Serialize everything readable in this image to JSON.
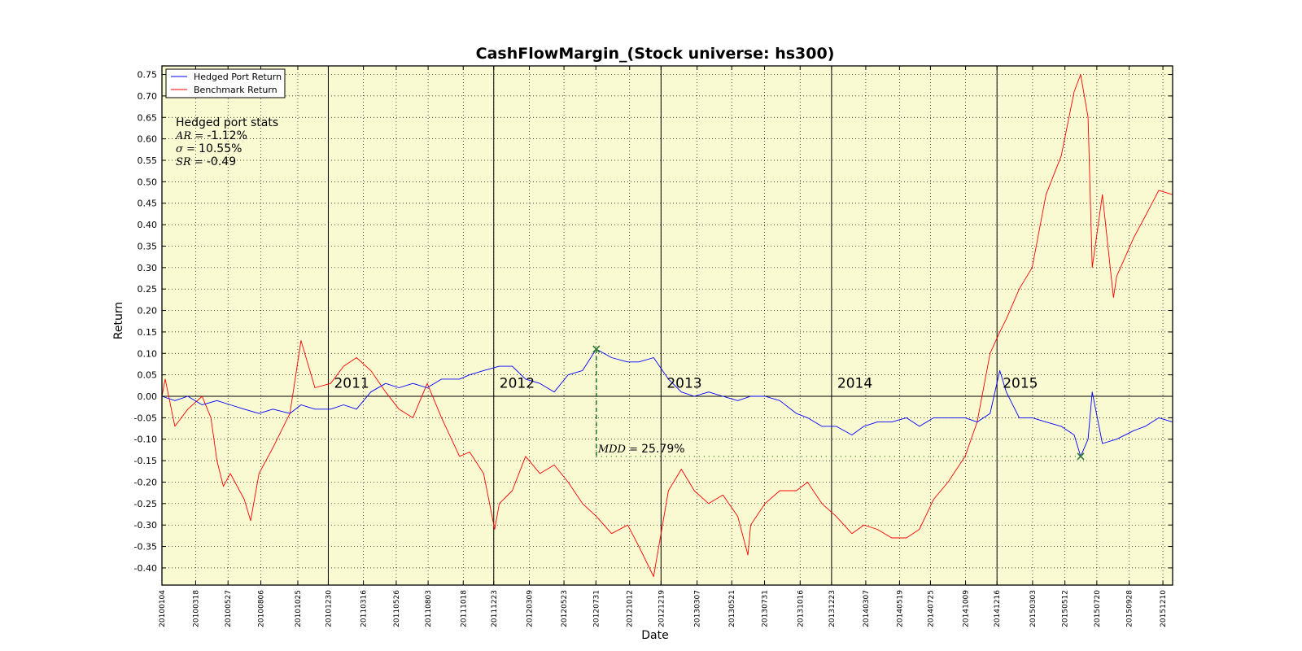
{
  "chart_data": {
    "type": "line",
    "title": "CashFlowMargin_(Stock universe: hs300)",
    "xlabel": "Date",
    "ylabel": "Return",
    "ylim": [
      -0.44,
      0.77
    ],
    "yticks": [
      "0.75",
      "0.70",
      "0.65",
      "0.60",
      "0.55",
      "0.50",
      "0.45",
      "0.40",
      "0.35",
      "0.30",
      "0.25",
      "0.20",
      "0.15",
      "0.10",
      "0.05",
      "0.00",
      "-0.05",
      "-0.10",
      "-0.15",
      "-0.20",
      "-0.25",
      "-0.30",
      "-0.35",
      "-0.40"
    ],
    "xticks": [
      "20100104",
      "20100318",
      "20100527",
      "20100806",
      "20101025",
      "20101230",
      "20110316",
      "20110526",
      "20110803",
      "20111018",
      "20111223",
      "20120309",
      "20120523",
      "20120731",
      "20121012",
      "20121219",
      "20130307",
      "20130521",
      "20130731",
      "20131016",
      "20131223",
      "20140307",
      "20140519",
      "20140725",
      "20141009",
      "20141216",
      "20150303",
      "20150512",
      "20150720",
      "20150928",
      "20151210"
    ],
    "year_markers": [
      {
        "date": "20101230",
        "label": "2011"
      },
      {
        "date": "20111223",
        "label": "2012"
      },
      {
        "date": "20121219",
        "label": "2013"
      },
      {
        "date": "20131223",
        "label": "2014"
      },
      {
        "date": "20141216",
        "label": "2015"
      }
    ],
    "grid": true,
    "legend": "top-left",
    "background_color": "#fafad2",
    "series": [
      {
        "name": "Hedged Port Return",
        "color": "#0000ff",
        "x": [
          "20100104",
          "20100201",
          "20100301",
          "20100401",
          "20100503",
          "20100601",
          "20100701",
          "20100802",
          "20100901",
          "20101008",
          "20101101",
          "20101201",
          "20110104",
          "20110201",
          "20110301",
          "20110401",
          "20110503",
          "20110601",
          "20110701",
          "20110801",
          "20110901",
          "20111010",
          "20111101",
          "20111201",
          "20120104",
          "20120201",
          "20120301",
          "20120401",
          "20120502",
          "20120601",
          "20120702",
          "20120801",
          "20120903",
          "20121008",
          "20121101",
          "20121203",
          "20130104",
          "20130201",
          "20130301",
          "20130401",
          "20130502",
          "20130603",
          "20130701",
          "20130801",
          "20130902",
          "20131008",
          "20131101",
          "20131202",
          "20140102",
          "20140205",
          "20140303",
          "20140401",
          "20140502",
          "20140603",
          "20140701",
          "20140801",
          "20140901",
          "20141008",
          "20141103",
          "20141201",
          "20141222",
          "20150105",
          "20150202",
          "20150302",
          "20150401",
          "20150504",
          "20150601",
          "20150615",
          "20150701",
          "20150710",
          "20150801",
          "20150901",
          "20151008",
          "20151102",
          "20151201",
          "20151231"
        ],
        "values": [
          0.0,
          -0.01,
          0.0,
          -0.02,
          -0.01,
          -0.02,
          -0.03,
          -0.04,
          -0.03,
          -0.04,
          -0.02,
          -0.03,
          -0.03,
          -0.02,
          -0.03,
          0.01,
          0.03,
          0.02,
          0.03,
          0.02,
          0.04,
          0.04,
          0.05,
          0.06,
          0.07,
          0.07,
          0.04,
          0.03,
          0.01,
          0.05,
          0.06,
          0.11,
          0.09,
          0.08,
          0.08,
          0.09,
          0.04,
          0.01,
          0.0,
          0.01,
          0.0,
          -0.01,
          0.0,
          0.0,
          -0.01,
          -0.04,
          -0.05,
          -0.07,
          -0.07,
          -0.09,
          -0.07,
          -0.06,
          -0.06,
          -0.05,
          -0.07,
          -0.05,
          -0.05,
          -0.05,
          -0.06,
          -0.04,
          0.06,
          0.01,
          -0.05,
          -0.05,
          -0.06,
          -0.07,
          -0.09,
          -0.14,
          -0.1,
          0.01,
          -0.11,
          -0.1,
          -0.08,
          -0.07,
          -0.05,
          -0.06
        ]
      },
      {
        "name": "Benchmark Return",
        "color": "#ff0000",
        "x": [
          "20100104",
          "20100111",
          "20100201",
          "20100301",
          "20100401",
          "20100420",
          "20100503",
          "20100517",
          "20100601",
          "20100701",
          "20100715",
          "20100802",
          "20100901",
          "20101008",
          "20101101",
          "20101201",
          "20110104",
          "20110201",
          "20110301",
          "20110401",
          "20110503",
          "20110601",
          "20110701",
          "20110801",
          "20110901",
          "20111010",
          "20111101",
          "20111201",
          "20111225",
          "20120104",
          "20120201",
          "20120301",
          "20120401",
          "20120502",
          "20120601",
          "20120702",
          "20120801",
          "20120903",
          "20121008",
          "20121101",
          "20121203",
          "20130104",
          "20130201",
          "20130301",
          "20130401",
          "20130502",
          "20130603",
          "20130625",
          "20130701",
          "20130801",
          "20130902",
          "20131008",
          "20131101",
          "20131202",
          "20140102",
          "20140205",
          "20140303",
          "20140401",
          "20140502",
          "20140603",
          "20140701",
          "20140801",
          "20140901",
          "20141008",
          "20141103",
          "20141201",
          "20141222",
          "20150105",
          "20150202",
          "20150302",
          "20150401",
          "20150504",
          "20150601",
          "20150615",
          "20150701",
          "20150710",
          "20150801",
          "20150825",
          "20150901",
          "20151008",
          "20151102",
          "20151201",
          "20151231"
        ],
        "values": [
          0.0,
          0.04,
          -0.07,
          -0.03,
          0.0,
          -0.05,
          -0.15,
          -0.21,
          -0.18,
          -0.24,
          -0.29,
          -0.18,
          -0.12,
          -0.04,
          0.13,
          0.02,
          0.03,
          0.07,
          0.09,
          0.06,
          0.01,
          -0.03,
          -0.05,
          0.03,
          -0.05,
          -0.14,
          -0.13,
          -0.18,
          -0.31,
          -0.25,
          -0.22,
          -0.14,
          -0.18,
          -0.16,
          -0.2,
          -0.25,
          -0.28,
          -0.32,
          -0.3,
          -0.35,
          -0.42,
          -0.22,
          -0.17,
          -0.22,
          -0.25,
          -0.23,
          -0.28,
          -0.37,
          -0.3,
          -0.25,
          -0.22,
          -0.22,
          -0.2,
          -0.25,
          -0.28,
          -0.32,
          -0.3,
          -0.31,
          -0.33,
          -0.33,
          -0.31,
          -0.24,
          -0.2,
          -0.14,
          -0.06,
          0.1,
          0.15,
          0.18,
          0.25,
          0.3,
          0.47,
          0.56,
          0.71,
          0.75,
          0.65,
          0.3,
          0.47,
          0.23,
          0.28,
          0.37,
          0.42,
          0.48,
          0.47
        ]
      }
    ],
    "stats": {
      "heading": "Hedged port stats",
      "rows": [
        {
          "symbol": "AR",
          "value": "-1.12%"
        },
        {
          "symbol": "σ",
          "value": "10.55%"
        },
        {
          "symbol": "SR",
          "value": "-0.49"
        }
      ]
    },
    "mdd": {
      "symbol": "MDD",
      "value": "25.79%",
      "peak": {
        "date": "20120801",
        "value": 0.11
      },
      "trough": {
        "date": "20150615",
        "value": -0.14
      },
      "color": "#2e7d32"
    }
  }
}
